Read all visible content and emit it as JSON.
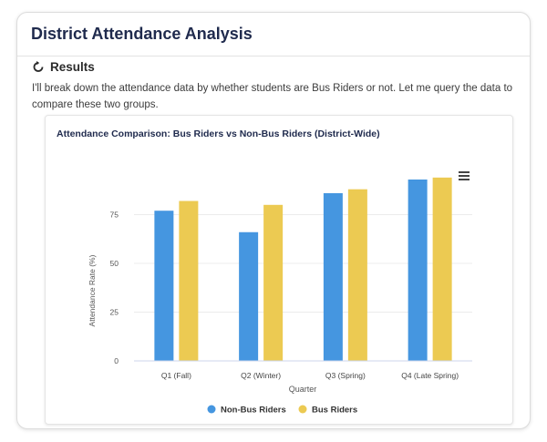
{
  "header": {
    "title": "District Attendance Analysis"
  },
  "results": {
    "label": "Results",
    "icon": "refresh-icon",
    "text": "I'll break down the attendance data by whether students are Bus Riders or not. Let me query the data to compare these two groups."
  },
  "chart_menu_icon": "hamburger-menu-icon",
  "chart_data": {
    "type": "bar",
    "title": "Attendance Comparison: Bus Riders vs Non-Bus Riders (District-Wide)",
    "xlabel": "Quarter",
    "ylabel": "Attendance Rate (%)",
    "categories": [
      "Q1 (Fall)",
      "Q2 (Winter)",
      "Q3 (Spring)",
      "Q4 (Late Spring)"
    ],
    "series": [
      {
        "name": "Non-Bus Riders",
        "color": "#4596e0",
        "values": [
          77,
          66,
          86,
          93
        ]
      },
      {
        "name": "Bus Riders",
        "color": "#ecca52",
        "values": [
          82,
          80,
          88,
          94
        ]
      }
    ],
    "yticks": [
      0,
      25,
      50,
      75
    ],
    "ylim": [
      0,
      100
    ],
    "grid": true,
    "legend": "bottom"
  }
}
